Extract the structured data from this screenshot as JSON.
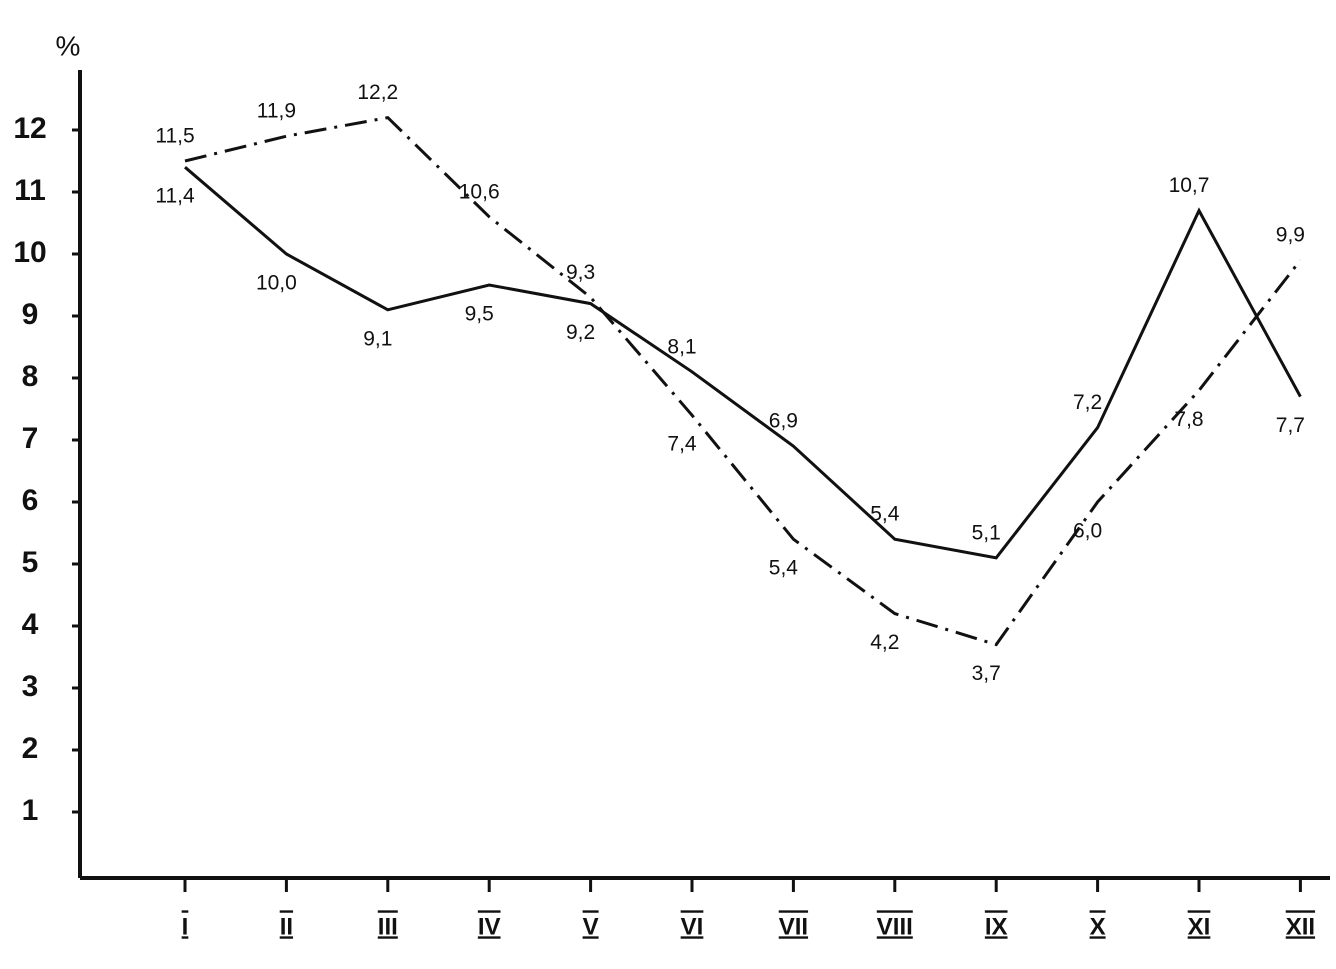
{
  "chart_data": {
    "type": "line",
    "y_label": "%",
    "categories": [
      "I",
      "II",
      "III",
      "IV",
      "V",
      "VI",
      "VII",
      "VIII",
      "IX",
      "X",
      "XI",
      "XII"
    ],
    "series": [
      {
        "color": "#111111",
        "line_style": "solid",
        "values": [
          11.4,
          10.0,
          9.1,
          9.5,
          9.2,
          8.1,
          6.9,
          5.4,
          5.1,
          7.2,
          10.7,
          7.7
        ],
        "value_labels": [
          "11,4",
          "10,0",
          "9,1",
          "9,5",
          "9,2",
          "8,1",
          "6,9",
          "5,4",
          "5,1",
          "7,2",
          "10,7",
          "7,7"
        ]
      },
      {
        "color": "#111111",
        "line_style": "dashdot",
        "values": [
          11.5,
          11.9,
          12.2,
          10.6,
          9.3,
          7.4,
          5.4,
          4.2,
          3.7,
          6.0,
          7.8,
          9.9
        ],
        "value_labels": [
          "11,5",
          "11,9",
          "12,2",
          "10,6",
          "9,3",
          "7,4",
          "5,4",
          "4,2",
          "3,7",
          "6,0",
          "7,8",
          "9,9"
        ]
      }
    ],
    "ylim": [
      0,
      13
    ],
    "yticks": [
      1,
      2,
      3,
      4,
      5,
      6,
      7,
      8,
      9,
      10,
      11,
      12
    ]
  }
}
